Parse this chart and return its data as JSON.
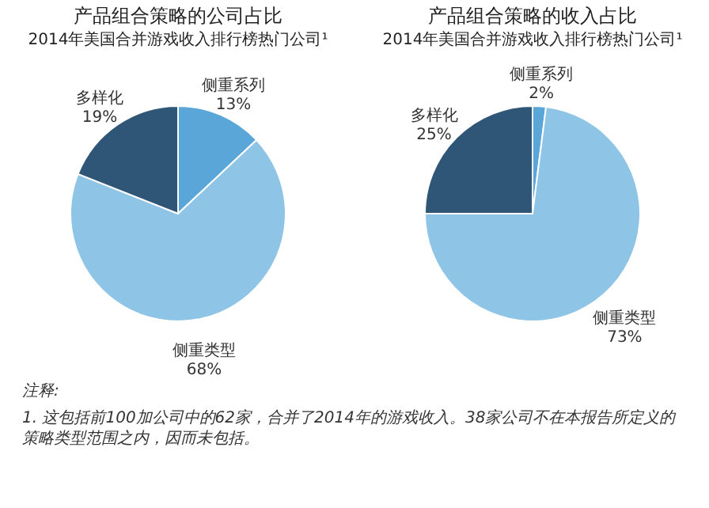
{
  "chart_data": [
    {
      "type": "pie",
      "title": "产品组合策略的公司占比",
      "subtitle": "2014年美国合并游戏收入排行榜热门公司¹",
      "categories": [
        "侧重系列",
        "侧重类型",
        "多样化"
      ],
      "values": [
        13,
        68,
        19
      ],
      "value_labels": [
        "13%",
        "68%",
        "19%"
      ],
      "colors": [
        "#5aa6d9",
        "#8ec4e6",
        "#2f5577"
      ],
      "annotations": [
        "注释:",
        "1. 这包括前100加公司中的62家，合并了2014年的游戏收入。38家公司不在本报告所定义的策略类型范围之内，因而未包括。"
      ]
    },
    {
      "type": "pie",
      "title": "产品组合策略的收入占比",
      "subtitle": "2014年美国合并游戏收入排行榜热门公司¹",
      "categories": [
        "侧重系列",
        "侧重类型",
        "多样化"
      ],
      "values": [
        2,
        73,
        25
      ],
      "value_labels": [
        "2%",
        "73%",
        "25%"
      ],
      "colors": [
        "#5aa6d9",
        "#8ec4e6",
        "#2f5577"
      ]
    }
  ]
}
